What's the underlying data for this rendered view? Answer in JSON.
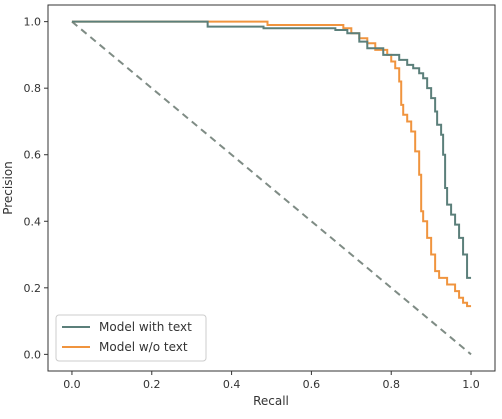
{
  "chart_data": {
    "type": "line",
    "xlabel": "Recall",
    "ylabel": "Precision",
    "xlim": [
      -0.06,
      1.06
    ],
    "ylim": [
      -0.05,
      1.05
    ],
    "xticks": [
      0.0,
      0.2,
      0.4,
      0.6,
      0.8,
      1.0
    ],
    "xtick_labels": [
      "0.0",
      "0.2",
      "0.4",
      "0.6",
      "0.8",
      "1.0"
    ],
    "yticks": [
      0.0,
      0.2,
      0.4,
      0.6,
      0.8,
      1.0
    ],
    "ytick_labels": [
      "0.0",
      "0.2",
      "0.4",
      "0.6",
      "0.8",
      "1.0"
    ],
    "grid": false,
    "legend_position": "lower-left",
    "series": [
      {
        "name": "Model with text",
        "color": "#5b7f7a",
        "style": "solid",
        "points": [
          [
            0.0,
            1.0
          ],
          [
            0.34,
            1.0
          ],
          [
            0.34,
            0.985
          ],
          [
            0.48,
            0.985
          ],
          [
            0.48,
            0.98
          ],
          [
            0.66,
            0.98
          ],
          [
            0.66,
            0.975
          ],
          [
            0.69,
            0.975
          ],
          [
            0.69,
            0.965
          ],
          [
            0.72,
            0.965
          ],
          [
            0.72,
            0.94
          ],
          [
            0.74,
            0.94
          ],
          [
            0.74,
            0.92
          ],
          [
            0.78,
            0.92
          ],
          [
            0.78,
            0.9
          ],
          [
            0.82,
            0.9
          ],
          [
            0.82,
            0.885
          ],
          [
            0.84,
            0.885
          ],
          [
            0.84,
            0.87
          ],
          [
            0.855,
            0.87
          ],
          [
            0.855,
            0.86
          ],
          [
            0.87,
            0.86
          ],
          [
            0.87,
            0.845
          ],
          [
            0.88,
            0.845
          ],
          [
            0.88,
            0.83
          ],
          [
            0.89,
            0.83
          ],
          [
            0.89,
            0.8
          ],
          [
            0.9,
            0.8
          ],
          [
            0.9,
            0.77
          ],
          [
            0.91,
            0.77
          ],
          [
            0.91,
            0.73
          ],
          [
            0.915,
            0.73
          ],
          [
            0.915,
            0.69
          ],
          [
            0.925,
            0.69
          ],
          [
            0.925,
            0.66
          ],
          [
            0.93,
            0.66
          ],
          [
            0.93,
            0.6
          ],
          [
            0.935,
            0.6
          ],
          [
            0.935,
            0.5
          ],
          [
            0.94,
            0.5
          ],
          [
            0.94,
            0.45
          ],
          [
            0.95,
            0.45
          ],
          [
            0.95,
            0.42
          ],
          [
            0.96,
            0.42
          ],
          [
            0.96,
            0.39
          ],
          [
            0.97,
            0.39
          ],
          [
            0.97,
            0.35
          ],
          [
            0.98,
            0.35
          ],
          [
            0.98,
            0.3
          ],
          [
            0.99,
            0.3
          ],
          [
            0.99,
            0.23
          ],
          [
            1.0,
            0.23
          ]
        ]
      },
      {
        "name": "Model w/o text",
        "color": "#f0943e",
        "style": "solid",
        "points": [
          [
            0.0,
            1.0
          ],
          [
            0.49,
            1.0
          ],
          [
            0.49,
            0.99
          ],
          [
            0.68,
            0.99
          ],
          [
            0.68,
            0.98
          ],
          [
            0.7,
            0.98
          ],
          [
            0.7,
            0.965
          ],
          [
            0.72,
            0.965
          ],
          [
            0.72,
            0.95
          ],
          [
            0.74,
            0.95
          ],
          [
            0.74,
            0.935
          ],
          [
            0.76,
            0.935
          ],
          [
            0.76,
            0.915
          ],
          [
            0.79,
            0.915
          ],
          [
            0.79,
            0.9
          ],
          [
            0.8,
            0.9
          ],
          [
            0.8,
            0.88
          ],
          [
            0.81,
            0.88
          ],
          [
            0.81,
            0.86
          ],
          [
            0.82,
            0.86
          ],
          [
            0.82,
            0.82
          ],
          [
            0.825,
            0.82
          ],
          [
            0.825,
            0.75
          ],
          [
            0.83,
            0.75
          ],
          [
            0.83,
            0.72
          ],
          [
            0.84,
            0.72
          ],
          [
            0.84,
            0.7
          ],
          [
            0.85,
            0.7
          ],
          [
            0.85,
            0.67
          ],
          [
            0.86,
            0.67
          ],
          [
            0.86,
            0.61
          ],
          [
            0.87,
            0.61
          ],
          [
            0.87,
            0.54
          ],
          [
            0.875,
            0.54
          ],
          [
            0.875,
            0.43
          ],
          [
            0.88,
            0.43
          ],
          [
            0.88,
            0.4
          ],
          [
            0.89,
            0.4
          ],
          [
            0.89,
            0.35
          ],
          [
            0.9,
            0.35
          ],
          [
            0.9,
            0.3
          ],
          [
            0.91,
            0.3
          ],
          [
            0.91,
            0.25
          ],
          [
            0.92,
            0.25
          ],
          [
            0.92,
            0.23
          ],
          [
            0.94,
            0.23
          ],
          [
            0.94,
            0.21
          ],
          [
            0.96,
            0.21
          ],
          [
            0.96,
            0.19
          ],
          [
            0.97,
            0.19
          ],
          [
            0.97,
            0.17
          ],
          [
            0.98,
            0.17
          ],
          [
            0.98,
            0.155
          ],
          [
            0.99,
            0.155
          ],
          [
            0.99,
            0.145
          ],
          [
            1.0,
            0.145
          ]
        ]
      },
      {
        "name": "",
        "color": "#7f8c85",
        "style": "dashed",
        "points": [
          [
            0.0,
            1.0
          ],
          [
            1.0,
            0.0
          ]
        ]
      }
    ]
  }
}
